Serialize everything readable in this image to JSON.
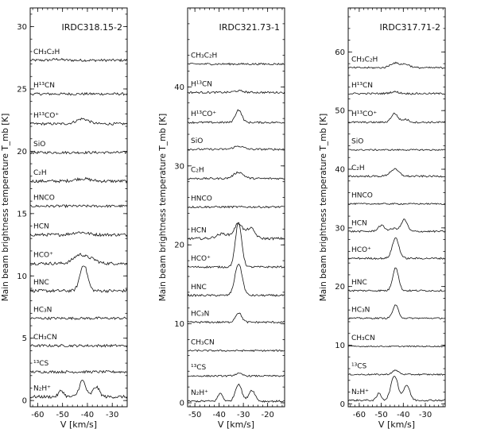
{
  "chart_data": [
    {
      "type": "line",
      "title": "IRDC318.15-2",
      "xlabel": "V [km/s]",
      "ylabel": "Main beam brightness temperature T_mb [K]",
      "xlim": [
        -63,
        -24
      ],
      "ylim": [
        -0.5,
        31.5
      ],
      "xticks": [
        -60,
        -50,
        -40,
        -30
      ],
      "yticks": [
        0,
        5,
        10,
        15,
        20,
        25,
        30
      ],
      "lines": [
        {
          "label": "CH₃C₂H",
          "baseline": 27.3,
          "noise": 0.1,
          "peaks": [
            [
              -52,
              0.08,
              2
            ]
          ]
        },
        {
          "label": "H¹³CN",
          "baseline": 24.6,
          "noise": 0.1,
          "peaks": []
        },
        {
          "label": "H¹³CO⁺",
          "baseline": 22.2,
          "noise": 0.1,
          "peaks": [
            [
              -42,
              0.4,
              2.5
            ]
          ]
        },
        {
          "label": "SiO",
          "baseline": 19.9,
          "noise": 0.1,
          "peaks": []
        },
        {
          "label": "C₂H",
          "baseline": 17.6,
          "noise": 0.12,
          "peaks": [
            [
              -42,
              0.2,
              3
            ]
          ]
        },
        {
          "label": "HNCO",
          "baseline": 15.6,
          "noise": 0.1,
          "peaks": []
        },
        {
          "label": "HCN",
          "baseline": 13.3,
          "noise": 0.12,
          "peaks": [
            [
              -43,
              0.2,
              3
            ]
          ]
        },
        {
          "label": "HCO⁺",
          "baseline": 11.0,
          "noise": 0.12,
          "peaks": [
            [
              -43,
              0.7,
              2.5
            ],
            [
              -38,
              0.3,
              2
            ]
          ]
        },
        {
          "label": "HNC",
          "baseline": 8.8,
          "noise": 0.12,
          "peaks": [
            [
              -41.5,
              2.1,
              1.5
            ]
          ]
        },
        {
          "label": "HC₃N",
          "baseline": 6.6,
          "noise": 0.1,
          "peaks": []
        },
        {
          "label": "CH₃CN",
          "baseline": 4.4,
          "noise": 0.1,
          "peaks": []
        },
        {
          "label": "¹³CS",
          "baseline": 2.3,
          "noise": 0.1,
          "peaks": []
        },
        {
          "label": "N₂H⁺",
          "baseline": 0.3,
          "noise": 0.12,
          "peaks": [
            [
              -50.5,
              0.5,
              1
            ],
            [
              -42,
              1.3,
              1.3
            ],
            [
              -36.5,
              0.8,
              1.3
            ]
          ]
        }
      ]
    },
    {
      "type": "line",
      "title": "IRDC321.73-1",
      "xlabel": "V [km/s]",
      "ylabel": "Main beam brightness temperature T_mb [K]",
      "xlim": [
        -53,
        -13
      ],
      "ylim": [
        -0.5,
        50
      ],
      "xticks": [
        -50,
        -40,
        -30,
        -20
      ],
      "yticks": [
        0,
        10,
        20,
        30,
        40
      ],
      "lines": [
        {
          "label": "CH₃C₂H",
          "baseline": 42.9,
          "noise": 0.12,
          "peaks": []
        },
        {
          "label": "H¹³CN",
          "baseline": 39.3,
          "noise": 0.12,
          "peaks": [
            [
              -32,
              0.2,
              2
            ]
          ]
        },
        {
          "label": "H¹³CO⁺",
          "baseline": 35.5,
          "noise": 0.12,
          "peaks": [
            [
              -32,
              1.6,
              1.3
            ]
          ]
        },
        {
          "label": "SiO",
          "baseline": 32.1,
          "noise": 0.12,
          "peaks": [
            [
              -32,
              0.4,
              2
            ]
          ]
        },
        {
          "label": "C₂H",
          "baseline": 28.4,
          "noise": 0.12,
          "peaks": [
            [
              -32,
              0.8,
              2
            ]
          ]
        },
        {
          "label": "HNCO",
          "baseline": 24.8,
          "noise": 0.12,
          "peaks": []
        },
        {
          "label": "HCN",
          "baseline": 20.8,
          "noise": 0.15,
          "peaks": [
            [
              -38.5,
              0.6,
              2.5
            ],
            [
              -32,
              1.9,
              1.7
            ],
            [
              -27,
              1.3,
              1.7
            ]
          ]
        },
        {
          "label": "HCO⁺",
          "baseline": 17.2,
          "noise": 0.12,
          "peaks": [
            [
              -32,
              5.6,
              1.3
            ]
          ]
        },
        {
          "label": "HNC",
          "baseline": 13.6,
          "noise": 0.12,
          "peaks": [
            [
              -32,
              4.0,
              1.5
            ]
          ]
        },
        {
          "label": "HC₃N",
          "baseline": 10.2,
          "noise": 0.12,
          "peaks": [
            [
              -32,
              1.2,
              1.3
            ]
          ]
        },
        {
          "label": "CH₃CN",
          "baseline": 6.6,
          "noise": 0.1,
          "peaks": []
        },
        {
          "label": "¹³CS",
          "baseline": 3.4,
          "noise": 0.1,
          "peaks": [
            [
              -32,
              0.3,
              1.5
            ]
          ]
        },
        {
          "label": "N₂H⁺",
          "baseline": 0.2,
          "noise": 0.12,
          "peaks": [
            [
              -39.5,
              1.0,
              1
            ],
            [
              -32,
              2.2,
              1.3
            ],
            [
              -26.5,
              1.4,
              1.3
            ]
          ]
        }
      ]
    },
    {
      "type": "line",
      "title": "IRDC317.71-2",
      "xlabel": "V [km/s]",
      "ylabel": "Main beam brightness temperature T_mb [K]",
      "xlim": [
        -65,
        -21
      ],
      "ylim": [
        -0.5,
        67.5
      ],
      "xticks": [
        -60,
        -50,
        -40,
        -30
      ],
      "yticks": [
        0,
        10,
        20,
        30,
        40,
        50,
        60
      ],
      "lines": [
        {
          "label": "CH₃C₂H",
          "baseline": 57.3,
          "noise": 0.15,
          "peaks": [
            [
              -44,
              0.8,
              2
            ],
            [
              -39,
              0.6,
              2
            ]
          ]
        },
        {
          "label": "H¹³CN",
          "baseline": 52.9,
          "noise": 0.15,
          "peaks": [
            [
              -44,
              0.3,
              2
            ]
          ]
        },
        {
          "label": "H¹³CO⁺",
          "baseline": 48.0,
          "noise": 0.15,
          "peaks": [
            [
              -44,
              1.5,
              1.5
            ],
            [
              -39,
              0.5,
              1.5
            ]
          ]
        },
        {
          "label": "SiO",
          "baseline": 43.3,
          "noise": 0.12,
          "peaks": []
        },
        {
          "label": "C₂H",
          "baseline": 38.8,
          "noise": 0.15,
          "peaks": [
            [
              -44,
              1.2,
              2
            ]
          ]
        },
        {
          "label": "HNCO",
          "baseline": 34.1,
          "noise": 0.12,
          "peaks": []
        },
        {
          "label": "HCN",
          "baseline": 29.4,
          "noise": 0.15,
          "peaks": [
            [
              -50,
              1.0,
              1.5
            ],
            [
              -44,
              0.5,
              2
            ],
            [
              -39.5,
              2.0,
              1.3
            ]
          ]
        },
        {
          "label": "HCO⁺",
          "baseline": 24.8,
          "noise": 0.15,
          "peaks": [
            [
              -43.5,
              3.5,
              1.5
            ]
          ]
        },
        {
          "label": "HNC",
          "baseline": 19.3,
          "noise": 0.15,
          "peaks": [
            [
              -43.5,
              4.0,
              1.3
            ]
          ]
        },
        {
          "label": "HC₃N",
          "baseline": 14.6,
          "noise": 0.12,
          "peaks": [
            [
              -43.5,
              2.2,
              1.3
            ]
          ]
        },
        {
          "label": "CH₃CN",
          "baseline": 9.8,
          "noise": 0.1,
          "peaks": []
        },
        {
          "label": "¹³CS",
          "baseline": 5.0,
          "noise": 0.12,
          "peaks": [
            [
              -43.5,
              0.7,
              1.5
            ]
          ]
        },
        {
          "label": "N₂H⁺",
          "baseline": 0.6,
          "noise": 0.15,
          "peaks": [
            [
              -51,
              1.2,
              1
            ],
            [
              -44,
              4.2,
              1.6
            ],
            [
              -38.5,
              2.6,
              1.4
            ]
          ]
        }
      ]
    }
  ]
}
